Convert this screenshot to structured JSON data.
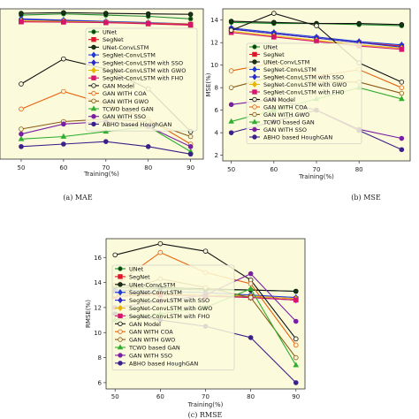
{
  "legend_entries": [
    {
      "name": "UNet",
      "color": "#1e8c2a",
      "marker": "o",
      "fill": "dark"
    },
    {
      "name": "SegNet",
      "color": "#e0162a",
      "marker": "s",
      "fill": "color"
    },
    {
      "name": "UNet-ConvLSTM",
      "color": "#111111",
      "marker": "o",
      "fill": "dark"
    },
    {
      "name": "SegNet-ConvLSTM",
      "color": "#1f3bd6",
      "marker": "d",
      "fill": "color"
    },
    {
      "name": "SegNet-ConvLSTM with SSO",
      "color": "#2a2acc",
      "marker": "d",
      "fill": "color"
    },
    {
      "name": "SegNet-ConvLSTM with GWO",
      "color": "#e8b400",
      "marker": "d",
      "fill": "color"
    },
    {
      "name": "SegNet-ConvLSTM with FHO",
      "color": "#d6156e",
      "marker": "s",
      "fill": "color"
    },
    {
      "name": "GAN Model",
      "color": "#111111",
      "marker": "o",
      "fill": "light"
    },
    {
      "name": "GAN WITH COA",
      "color": "#e8620c",
      "marker": "o",
      "fill": "light"
    },
    {
      "name": "GAN WITH GWO",
      "color": "#8a5a14",
      "marker": "o",
      "fill": "light"
    },
    {
      "name": "TCWO based GAN",
      "color": "#2fae2f",
      "marker": "^",
      "fill": "color"
    },
    {
      "name": "GAN WITH SSO",
      "color": "#7a1fa2",
      "marker": "o",
      "fill": "color"
    },
    {
      "name": "ABHO based HoughGAN",
      "color": "#3b1f8a",
      "marker": "o",
      "fill": "color"
    }
  ],
  "chart_data": [
    {
      "type": "line",
      "caption": "(a) MAE",
      "xlabel": "Training(%)",
      "ylabel": "",
      "x": [
        50,
        60,
        70,
        80,
        90
      ],
      "xticks": [
        50,
        60,
        70,
        80,
        90
      ],
      "ylim": [
        0,
        6
      ],
      "yticks": [],
      "legend": "right",
      "series": [
        {
          "name": "UNet",
          "values": [
            5.75,
            5.8,
            5.75,
            5.7,
            5.6
          ]
        },
        {
          "name": "SegNet",
          "values": [
            5.5,
            5.5,
            5.45,
            5.4,
            5.35
          ]
        },
        {
          "name": "UNet-ConvLSTM",
          "values": [
            5.82,
            5.85,
            5.82,
            5.8,
            5.78
          ]
        },
        {
          "name": "SegNet-ConvLSTM",
          "values": [
            5.6,
            5.55,
            5.5,
            5.45,
            5.4
          ]
        },
        {
          "name": "SegNet-ConvLSTM with SSO",
          "values": [
            5.58,
            5.53,
            5.48,
            5.43,
            5.38
          ]
        },
        {
          "name": "SegNet-ConvLSTM with GWO",
          "values": [
            5.52,
            5.5,
            5.47,
            5.43,
            5.4
          ]
        },
        {
          "name": "SegNet-ConvLSTM with FHO",
          "values": [
            5.48,
            5.47,
            5.45,
            5.42,
            5.38
          ]
        },
        {
          "name": "GAN Model",
          "values": [
            3.0,
            4.0,
            3.6,
            2.8,
            1.1
          ]
        },
        {
          "name": "GAN WITH COA",
          "values": [
            2.0,
            2.7,
            2.2,
            1.6,
            0.6
          ]
        },
        {
          "name": "GAN WITH GWO",
          "values": [
            1.2,
            1.5,
            1.6,
            1.5,
            0.9
          ]
        },
        {
          "name": "TCWO based GAN",
          "values": [
            0.8,
            0.9,
            1.1,
            1.3,
            0.3
          ]
        },
        {
          "name": "GAN WITH SSO",
          "values": [
            1.0,
            1.4,
            1.5,
            1.3,
            0.5
          ]
        },
        {
          "name": "ABHO based HoughGAN",
          "values": [
            0.5,
            0.6,
            0.7,
            0.5,
            0.2
          ]
        }
      ]
    },
    {
      "type": "line",
      "caption": "(b) MSE",
      "xlabel": "Training(%)",
      "ylabel": "MSE(%)",
      "x": [
        50,
        60,
        70,
        80,
        90
      ],
      "xticks": [
        50,
        60,
        70,
        80
      ],
      "ylim": [
        1.5,
        15
      ],
      "yticks": [
        2,
        4,
        6,
        8,
        10,
        12,
        14
      ],
      "legend": "center",
      "series": [
        {
          "name": "UNet",
          "values": [
            13.8,
            13.7,
            13.7,
            13.6,
            13.5
          ]
        },
        {
          "name": "SegNet",
          "values": [
            13.2,
            12.8,
            12.4,
            12.0,
            11.7
          ]
        },
        {
          "name": "UNet-ConvLSTM",
          "values": [
            13.9,
            13.8,
            13.7,
            13.7,
            13.6
          ]
        },
        {
          "name": "SegNet-ConvLSTM",
          "values": [
            13.3,
            12.9,
            12.5,
            12.1,
            11.8
          ]
        },
        {
          "name": "SegNet-ConvLSTM with SSO",
          "values": [
            13.2,
            12.8,
            12.4,
            12.0,
            11.6
          ]
        },
        {
          "name": "SegNet-ConvLSTM with GWO",
          "values": [
            13.0,
            12.6,
            12.2,
            11.8,
            11.5
          ]
        },
        {
          "name": "SegNet-ConvLSTM with FHO",
          "values": [
            12.9,
            12.5,
            12.1,
            11.7,
            11.4
          ]
        },
        {
          "name": "GAN Model",
          "values": [
            13.1,
            14.6,
            13.5,
            10.2,
            8.5
          ]
        },
        {
          "name": "GAN WITH COA",
          "values": [
            9.5,
            10.2,
            9.0,
            9.6,
            8.0
          ]
        },
        {
          "name": "GAN WITH GWO",
          "values": [
            8.0,
            9.0,
            8.5,
            8.5,
            7.5
          ]
        },
        {
          "name": "TCWO based GAN",
          "values": [
            5.0,
            6.0,
            7.0,
            8.0,
            7.0
          ]
        },
        {
          "name": "GAN WITH SSO",
          "values": [
            6.5,
            7.0,
            6.0,
            4.3,
            3.5
          ]
        },
        {
          "name": "ABHO based HoughGAN",
          "values": [
            4.0,
            5.0,
            6.0,
            4.2,
            2.5
          ]
        }
      ]
    },
    {
      "type": "line",
      "caption": "(c) RMSE",
      "xlabel": "Training(%)",
      "ylabel": "RMSE(%)",
      "x": [
        50,
        60,
        70,
        80,
        90
      ],
      "xticks": [
        50,
        60,
        70,
        80,
        90
      ],
      "ylim": [
        5.5,
        17.5
      ],
      "yticks": [
        6,
        8,
        10,
        12,
        14,
        16
      ],
      "legend": "upper-left",
      "series": [
        {
          "name": "UNet",
          "values": [
            13.6,
            13.5,
            13.4,
            13.4,
            13.3
          ]
        },
        {
          "name": "SegNet",
          "values": [
            13.2,
            13.1,
            13.0,
            12.9,
            12.7
          ]
        },
        {
          "name": "UNet-ConvLSTM",
          "values": [
            13.8,
            13.6,
            13.5,
            13.4,
            13.3
          ]
        },
        {
          "name": "SegNet-ConvLSTM",
          "values": [
            13.4,
            13.3,
            13.2,
            13.0,
            12.8
          ]
        },
        {
          "name": "SegNet-ConvLSTM with SSO",
          "values": [
            13.2,
            13.1,
            13.0,
            12.8,
            12.6
          ]
        },
        {
          "name": "SegNet-ConvLSTM with GWO",
          "values": [
            13.0,
            13.1,
            13.0,
            12.9,
            12.7
          ]
        },
        {
          "name": "SegNet-ConvLSTM with FHO",
          "values": [
            12.9,
            13.0,
            12.9,
            12.8,
            12.6
          ]
        },
        {
          "name": "GAN Model",
          "values": [
            16.2,
            17.1,
            16.5,
            14.2,
            9.5
          ]
        },
        {
          "name": "GAN WITH COA",
          "values": [
            13.8,
            16.4,
            14.8,
            13.9,
            9.0
          ]
        },
        {
          "name": "GAN WITH GWO",
          "values": [
            13.0,
            14.3,
            13.6,
            12.8,
            8.0
          ]
        },
        {
          "name": "TCWO based GAN",
          "values": [
            11.0,
            11.5,
            12.0,
            13.5,
            7.4
          ]
        },
        {
          "name": "GAN WITH SSO",
          "values": [
            12.0,
            12.5,
            13.0,
            14.7,
            10.9
          ]
        },
        {
          "name": "ABHO based HoughGAN",
          "values": [
            11.5,
            11.0,
            10.5,
            9.6,
            6.0
          ]
        }
      ]
    }
  ]
}
